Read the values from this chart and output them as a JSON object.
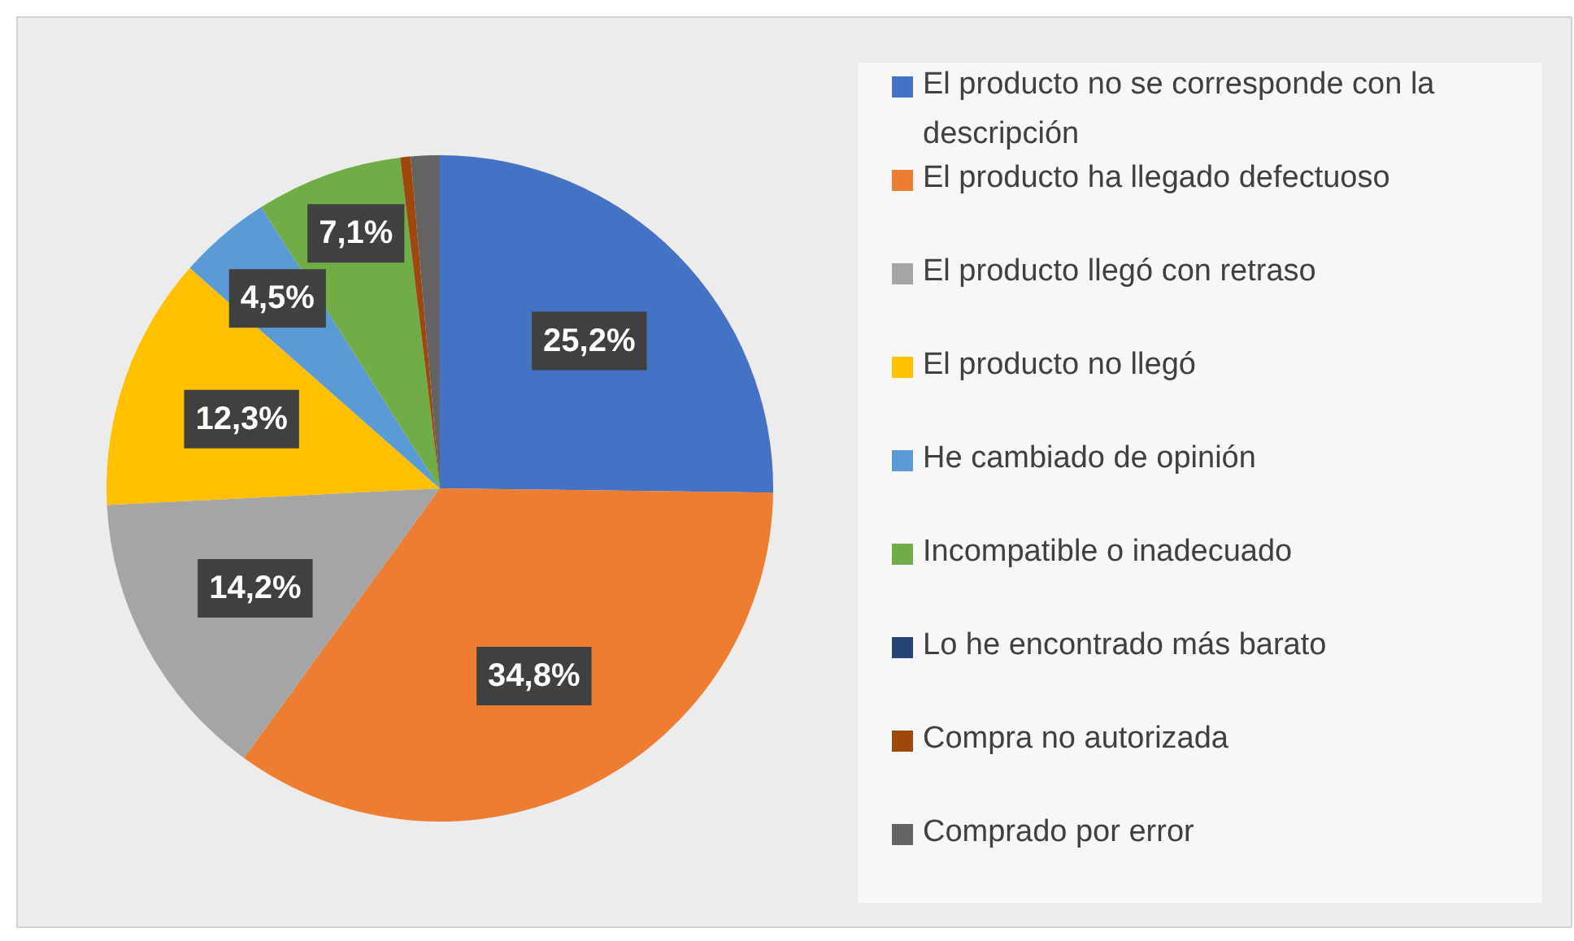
{
  "chart_data": {
    "type": "pie",
    "categories": [
      "El producto no se corresponde con la descripción",
      "El producto ha llegado defectuoso",
      "El producto llegó con retraso",
      "El producto no llegó",
      "He cambiado de opinión",
      "Incompatible o inadecuado",
      "Lo he encontrado más barato",
      "Compra no autorizada",
      "Comprado por error"
    ],
    "values": [
      25.2,
      34.8,
      14.2,
      12.3,
      4.5,
      7.1,
      0,
      0.5,
      1.4
    ],
    "colors": [
      "#4472c4",
      "#ed7d31",
      "#a5a5a5",
      "#ffc000",
      "#5b9bd5",
      "#70ad47",
      "#264478",
      "#9e480e",
      "#636363"
    ],
    "value_labels": [
      "25,2%",
      "34,8%",
      "14,2%",
      "12,3%",
      "4,5%",
      "7,1%",
      null,
      null,
      null
    ],
    "legend": "right"
  }
}
